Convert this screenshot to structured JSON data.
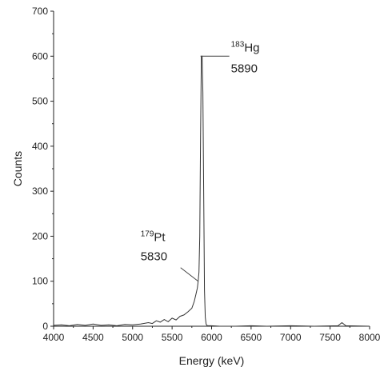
{
  "chart_data": {
    "type": "line",
    "title": "",
    "xlabel": "Energy (keV)",
    "ylabel": "Counts",
    "xlim": [
      4000,
      8000
    ],
    "ylim": [
      0,
      700
    ],
    "xticks": [
      4000,
      4500,
      5000,
      5500,
      6000,
      6500,
      7000,
      7500,
      8000
    ],
    "yticks": [
      0,
      100,
      200,
      300,
      400,
      500,
      600,
      700
    ],
    "grid": false,
    "legend": "none",
    "series_color": "#333333",
    "series": [
      {
        "x": [
          4000,
          4100,
          4200,
          4300,
          4400,
          4500,
          4600,
          4700,
          4800,
          4900,
          5000,
          5100,
          5200,
          5250,
          5300,
          5350,
          5400,
          5450,
          5500,
          5550,
          5600,
          5650,
          5700,
          5750,
          5780,
          5800,
          5820,
          5830,
          5840,
          5850,
          5860,
          5870,
          5880,
          5890,
          5900,
          5910,
          5920,
          5930,
          5940,
          5950,
          6000,
          6100,
          6300,
          6500,
          6700,
          7000,
          7300,
          7600,
          7650,
          7700,
          8000
        ],
        "y": [
          2,
          3,
          1,
          4,
          2,
          5,
          2,
          3,
          1,
          4,
          3,
          5,
          8,
          6,
          12,
          9,
          15,
          10,
          18,
          14,
          22,
          25,
          32,
          40,
          55,
          70,
          85,
          100,
          120,
          200,
          420,
          600,
          600,
          520,
          300,
          80,
          20,
          5,
          2,
          1,
          1,
          0,
          0,
          1,
          0,
          1,
          0,
          1,
          8,
          1,
          0
        ]
      }
    ],
    "annotations": [
      {
        "isotope": "Hg",
        "mass": "183",
        "energy_label": "5890",
        "x": 5890,
        "y": 600
      },
      {
        "isotope": "Pt",
        "mass": "179",
        "energy_label": "5830",
        "x": 5830,
        "y": 100
      }
    ]
  }
}
